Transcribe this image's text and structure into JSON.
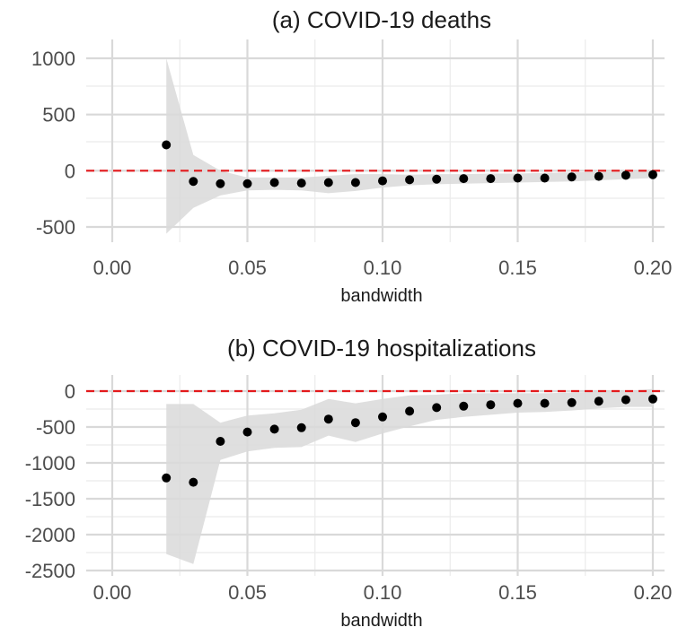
{
  "chart_data": [
    {
      "type": "scatter",
      "title": "(a) COVID-19 deaths",
      "xlabel": "bandwidth",
      "ylabel": "",
      "xlim": [
        0.0,
        0.2
      ],
      "ylim": [
        -600,
        1000
      ],
      "x_ticks": [
        "0.00",
        "0.05",
        "0.10",
        "0.15",
        "0.20"
      ],
      "y_ticks": [
        "1000",
        "500",
        "0",
        "-500"
      ],
      "grid": true,
      "reference_line": {
        "y": 0,
        "style": "dashed",
        "color": "#e31a1c"
      },
      "ribbon_color": "#d9d9d9",
      "point_color": "#000000",
      "series": [
        {
          "x": [
            0.02,
            0.03,
            0.04,
            0.05,
            0.06,
            0.07,
            0.08,
            0.09,
            0.1,
            0.11,
            0.12,
            0.13,
            0.14,
            0.15,
            0.16,
            0.17,
            0.18,
            0.19,
            0.2
          ],
          "y": [
            230,
            -95,
            -115,
            -115,
            -105,
            -110,
            -105,
            -105,
            -90,
            -80,
            -75,
            -70,
            -70,
            -65,
            -65,
            -55,
            -50,
            -40,
            -35
          ],
          "ci_low": [
            -560,
            -330,
            -220,
            -175,
            -170,
            -175,
            -200,
            -180,
            -150,
            -130,
            -120,
            -115,
            -110,
            -105,
            -100,
            -95,
            -85,
            -75,
            -65
          ],
          "ci_high": [
            1000,
            140,
            0,
            -60,
            -60,
            -60,
            -45,
            -30,
            -30,
            -35,
            -30,
            -30,
            -25,
            -25,
            -20,
            -15,
            -10,
            -10,
            -5
          ]
        }
      ]
    },
    {
      "type": "scatter",
      "title": "(b) COVID-19 hospitalizations",
      "xlabel": "bandwidth",
      "ylabel": "",
      "xlim": [
        0.0,
        0.2
      ],
      "ylim": [
        -2500,
        0
      ],
      "x_ticks": [
        "0.00",
        "0.05",
        "0.10",
        "0.15",
        "0.20"
      ],
      "y_ticks": [
        "0",
        "-500",
        "-1000",
        "-1500",
        "-2000",
        "-2500"
      ],
      "grid": true,
      "reference_line": {
        "y": 0,
        "style": "dashed",
        "color": "#e31a1c"
      },
      "ribbon_color": "#d9d9d9",
      "point_color": "#000000",
      "series": [
        {
          "x": [
            0.02,
            0.03,
            0.04,
            0.05,
            0.06,
            0.07,
            0.08,
            0.09,
            0.1,
            0.11,
            0.12,
            0.13,
            0.14,
            0.15,
            0.16,
            0.17,
            0.18,
            0.19,
            0.2
          ],
          "y": [
            -1210,
            -1270,
            -700,
            -570,
            -530,
            -510,
            -390,
            -440,
            -360,
            -280,
            -230,
            -210,
            -190,
            -170,
            -170,
            -160,
            -140,
            -120,
            -110
          ],
          "ci_low": [
            -2270,
            -2410,
            -960,
            -840,
            -790,
            -780,
            -620,
            -710,
            -590,
            -490,
            -400,
            -360,
            -330,
            -300,
            -290,
            -270,
            -240,
            -220,
            -220
          ],
          "ci_high": [
            -180,
            -180,
            -440,
            -340,
            -310,
            -260,
            -110,
            -170,
            -110,
            -60,
            -50,
            -30,
            -30,
            -30,
            -30,
            -20,
            -10,
            0,
            30
          ]
        }
      ]
    }
  ]
}
